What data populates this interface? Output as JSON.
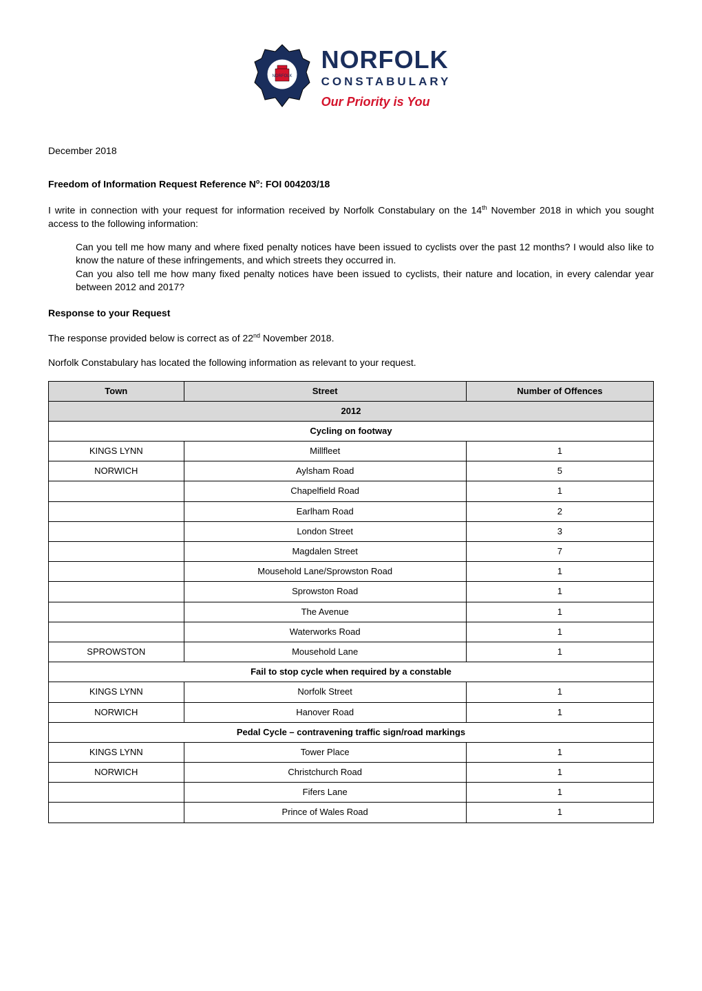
{
  "logo": {
    "norfolk": "NORFOLK",
    "constabulary": "CONSTABULARY",
    "priority": "Our Priority is You",
    "badge_colors": {
      "primary": "#1a2e5c",
      "accent": "#d4142c"
    }
  },
  "date": "December 2018",
  "foi_heading_prefix": "Freedom of Information Request Reference N",
  "foi_heading_sup": "o",
  "foi_heading_suffix": ": FOI 004203/18",
  "intro_para_prefix": "I write in connection with your request for information received by Norfolk Constabulary on the 14",
  "intro_para_sup": "th",
  "intro_para_suffix": " November 2018 in which you sought access to the following information:",
  "quote_1": "Can you tell me how many and where fixed penalty notices have been issued to cyclists over the past 12 months? I would also like to know the nature of these infringements, and which streets they occurred in.",
  "quote_2": "Can you also tell me how many fixed penalty notices have been issued to cyclists, their nature and location, in every calendar year between 2012 and 2017?",
  "response_heading": "Response to your Request",
  "response_para_1_prefix": "The response provided below is correct as of 22",
  "response_para_1_sup": "nd",
  "response_para_1_suffix": " November 2018.",
  "response_para_2": "Norfolk Constabulary has located the following information as relevant to your request.",
  "table": {
    "header_cols": [
      "Town",
      "Street",
      "Number of Offences"
    ],
    "year_row": "2012",
    "section_1": {
      "title": "Cycling on footway",
      "rows": [
        [
          "KINGS LYNN",
          "Millfleet",
          "1"
        ],
        [
          "NORWICH",
          "Aylsham Road",
          "5"
        ],
        [
          "",
          "Chapelfield Road",
          "1"
        ],
        [
          "",
          "Earlham Road",
          "2"
        ],
        [
          "",
          "London Street",
          "3"
        ],
        [
          "",
          "Magdalen Street",
          "7"
        ],
        [
          "",
          "Mousehold Lane/Sprowston Road",
          "1"
        ],
        [
          "",
          "Sprowston Road",
          "1"
        ],
        [
          "",
          "The Avenue",
          "1"
        ],
        [
          "",
          "Waterworks Road",
          "1"
        ],
        [
          "SPROWSTON",
          "Mousehold Lane",
          "1"
        ]
      ]
    },
    "section_2": {
      "title": "Fail to stop cycle when required by a constable",
      "rows": [
        [
          "KINGS LYNN",
          "Norfolk Street",
          "1"
        ],
        [
          "NORWICH",
          "Hanover Road",
          "1"
        ]
      ]
    },
    "section_3": {
      "title": "Pedal Cycle – contravening traffic sign/road markings",
      "rows": [
        [
          "KINGS LYNN",
          "Tower Place",
          "1"
        ],
        [
          "NORWICH",
          "Christchurch Road",
          "1"
        ],
        [
          "",
          "Fifers Lane",
          "1"
        ],
        [
          "",
          "Prince of Wales Road",
          "1"
        ]
      ]
    },
    "styling": {
      "border_color": "#000000",
      "header_bg": "#d9d9d9",
      "font_size": 13,
      "col_widths": [
        "33%",
        "34%",
        "33%"
      ]
    }
  }
}
